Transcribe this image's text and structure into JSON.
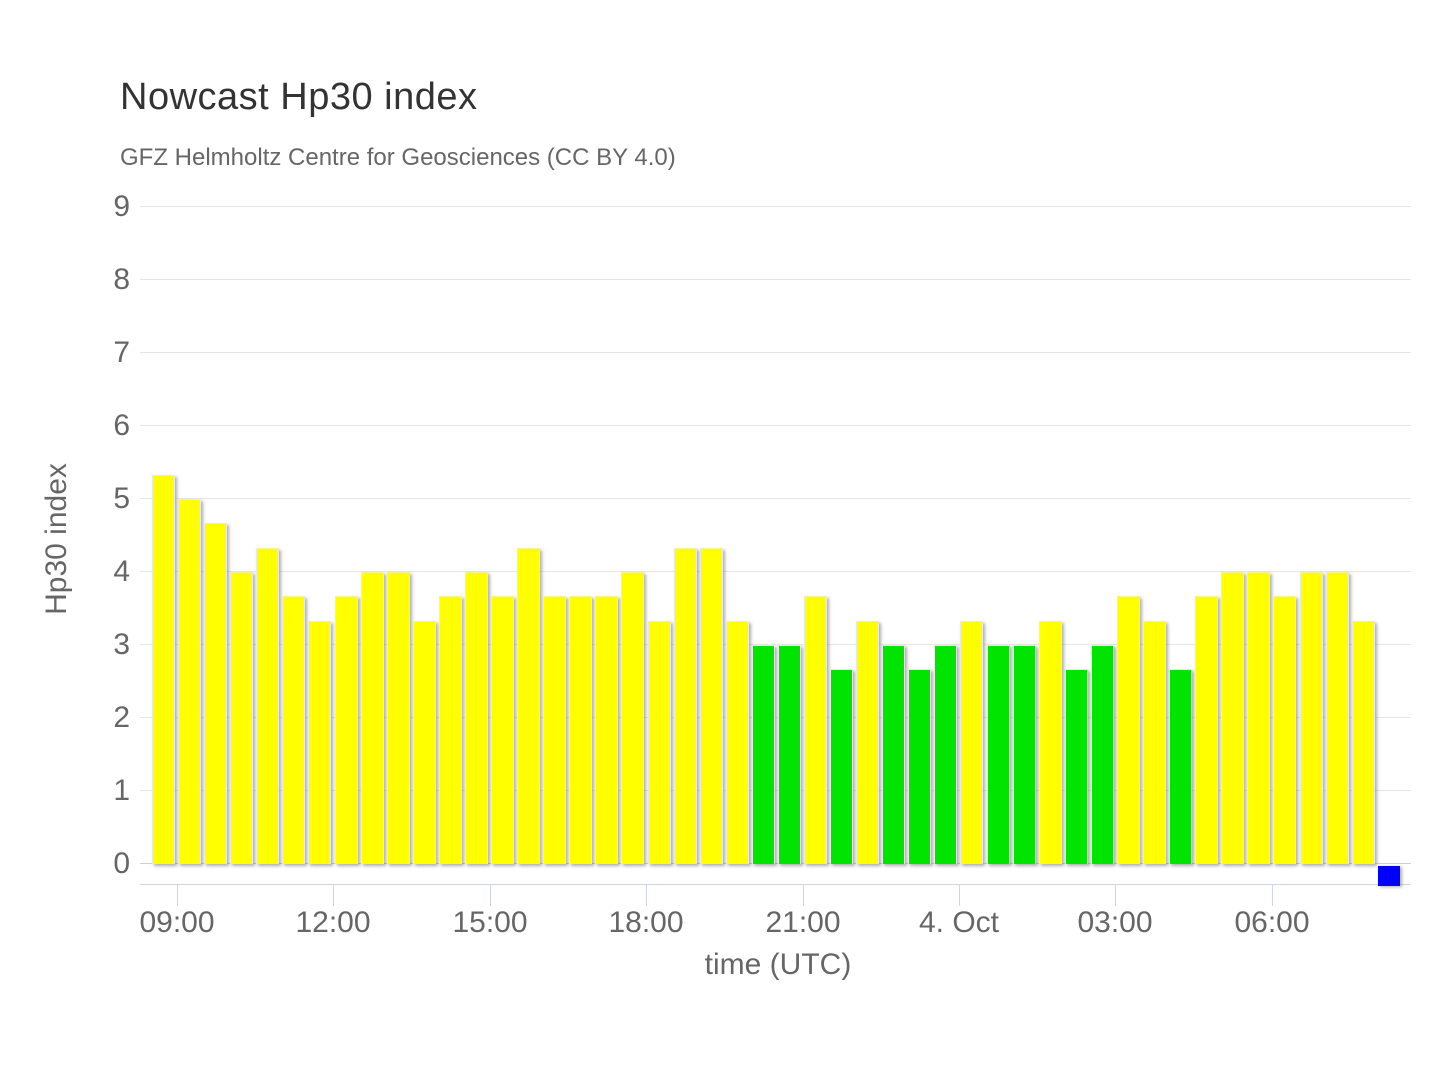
{
  "header": {
    "title": "Nowcast Hp30 index",
    "subtitle": "GFZ Helmholtz Centre for Geosciences (CC BY 4.0)"
  },
  "chart_data": {
    "type": "bar",
    "title": "Nowcast Hp30 index",
    "subtitle": "GFZ Helmholtz Centre for Geosciences (CC BY 4.0)",
    "xlabel": "time (UTC)",
    "ylabel": "Hp30 index",
    "ylim": [
      0,
      9
    ],
    "grid": true,
    "legend": false,
    "y_ticks": [
      0,
      1,
      2,
      3,
      4,
      5,
      6,
      7,
      8,
      9
    ],
    "x_ticks": [
      {
        "label": "09:00",
        "slot_boundary": 1
      },
      {
        "label": "12:00",
        "slot_boundary": 7
      },
      {
        "label": "15:00",
        "slot_boundary": 13
      },
      {
        "label": "18:00",
        "slot_boundary": 19
      },
      {
        "label": "21:00",
        "slot_boundary": 25
      },
      {
        "label": "4. Oct",
        "slot_boundary": 31
      },
      {
        "label": "03:00",
        "slot_boundary": 37
      },
      {
        "label": "06:00",
        "slot_boundary": 43
      }
    ],
    "values": [
      5.33,
      5.0,
      4.67,
      4.0,
      4.33,
      3.67,
      3.33,
      3.67,
      4.0,
      4.0,
      3.33,
      3.67,
      4.0,
      3.67,
      4.33,
      3.67,
      3.67,
      3.67,
      4.0,
      3.33,
      4.33,
      4.33,
      3.33,
      3.0,
      3.0,
      3.67,
      2.67,
      3.33,
      3.0,
      2.67,
      3.0,
      3.33,
      3.0,
      3.0,
      3.33,
      2.67,
      3.0,
      3.67,
      3.33,
      2.67,
      3.67,
      4.0,
      4.0,
      3.67,
      4.0,
      4.0,
      3.33
    ],
    "bar_colors": [
      "yellow",
      "yellow",
      "yellow",
      "yellow",
      "yellow",
      "yellow",
      "yellow",
      "yellow",
      "yellow",
      "yellow",
      "yellow",
      "yellow",
      "yellow",
      "yellow",
      "yellow",
      "yellow",
      "yellow",
      "yellow",
      "yellow",
      "yellow",
      "yellow",
      "yellow",
      "yellow",
      "green",
      "green",
      "yellow",
      "green",
      "yellow",
      "green",
      "green",
      "green",
      "yellow",
      "green",
      "green",
      "yellow",
      "green",
      "green",
      "yellow",
      "yellow",
      "green",
      "yellow",
      "yellow",
      "yellow",
      "yellow",
      "yellow",
      "yellow",
      "yellow"
    ],
    "latest_marker": {
      "slot": 47,
      "color": "blue"
    },
    "colors": {
      "yellow": "#ffff00",
      "green": "#00e400",
      "blue": "#0000ff",
      "gridline": "#e6e6e6",
      "axis_line": "#ccd6eb",
      "title_text": "#333333",
      "label_text": "#666666"
    }
  }
}
